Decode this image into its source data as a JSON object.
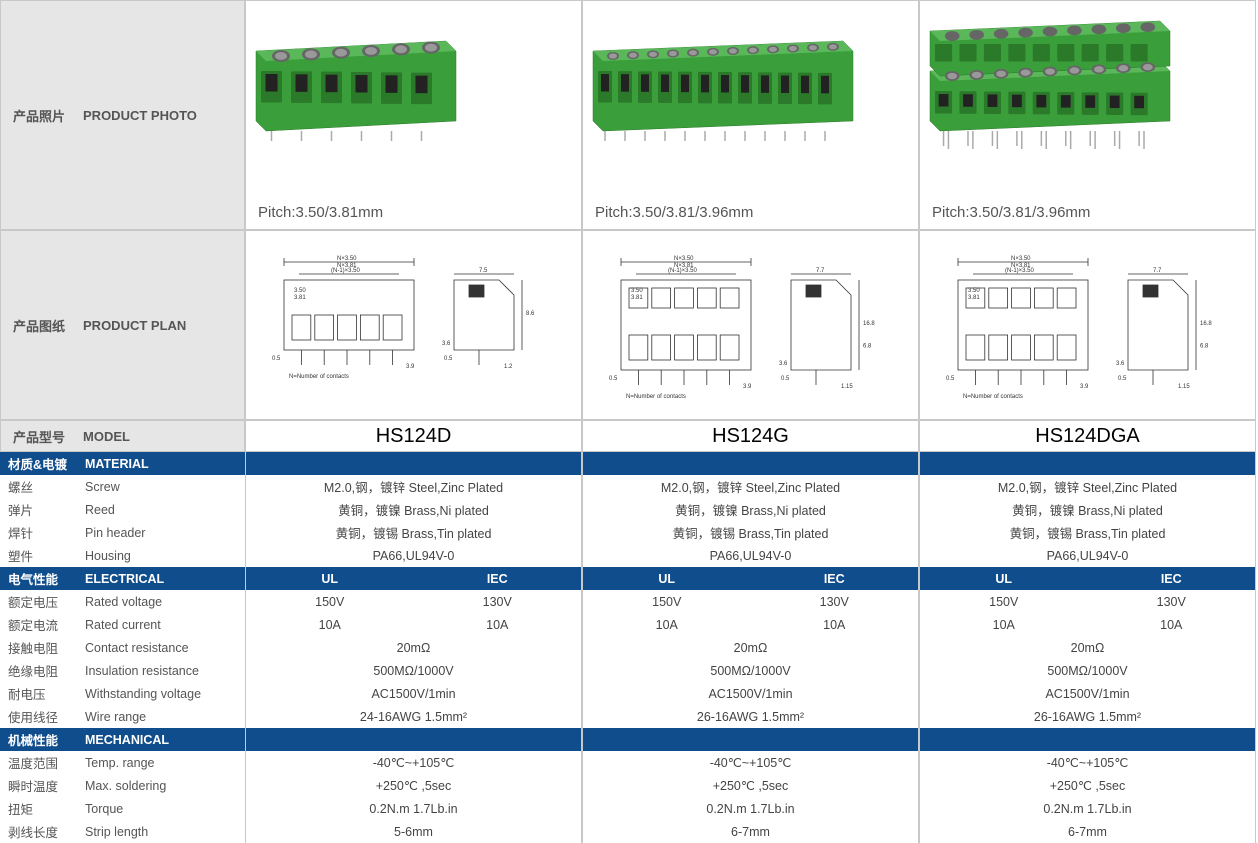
{
  "labels": {
    "photo_cn": "产品照片",
    "photo_en": "PRODUCT PHOTO",
    "plan_cn": "产品图纸",
    "plan_en": "PRODUCT PLAN",
    "model_cn": "产品型号",
    "model_en": "MODEL"
  },
  "products": [
    {
      "model": "HS124D",
      "pitch": "Pitch:3.50/3.81mm",
      "pins": 6,
      "rows": 1
    },
    {
      "model": "HS124G",
      "pitch": "Pitch:3.50/3.81/3.96mm",
      "pins": 12,
      "rows": 1
    },
    {
      "model": "HS124DGA",
      "pitch": "Pitch:3.50/3.81/3.96mm",
      "pins": 9,
      "rows": 2
    }
  ],
  "sections": [
    {
      "type": "header",
      "cn": "材质&电镀",
      "en": "MATERIAL",
      "data_header": ""
    },
    {
      "type": "row",
      "cn": "螺丝",
      "en": "Screw",
      "vals": [
        "M2.0,钢，镀锌 Steel,Zinc Plated",
        "M2.0,钢，镀锌 Steel,Zinc Plated",
        "M2.0,钢，镀锌 Steel,Zinc Plated"
      ]
    },
    {
      "type": "row",
      "cn": "弹片",
      "en": "Reed",
      "vals": [
        "黄铜，镀镍 Brass,Ni plated",
        "黄铜，镀镍 Brass,Ni plated",
        "黄铜，镀镍 Brass,Ni plated"
      ]
    },
    {
      "type": "row",
      "cn": "焊针",
      "en": "Pin header",
      "vals": [
        "黄铜，镀锡  Brass,Tin plated",
        "黄铜，镀锡 Brass,Tin plated",
        "黄铜，镀锡  Brass,Tin plated"
      ]
    },
    {
      "type": "row",
      "cn": "塑件",
      "en": "Housing",
      "vals": [
        "PA66,UL94V-0",
        "PA66,UL94V-0",
        "PA66,UL94V-0"
      ]
    },
    {
      "type": "header",
      "cn": "电气性能",
      "en": "ELECTRICAL",
      "data_header": "uliec"
    },
    {
      "type": "split",
      "cn": "额定电压",
      "en": "Rated voltage",
      "vals": [
        [
          "150V",
          "130V"
        ],
        [
          "150V",
          "130V"
        ],
        [
          "150V",
          "130V"
        ]
      ]
    },
    {
      "type": "split",
      "cn": "额定电流",
      "en": "Rated current",
      "vals": [
        [
          "10A",
          "10A"
        ],
        [
          "10A",
          "10A"
        ],
        [
          "10A",
          "10A"
        ]
      ]
    },
    {
      "type": "row",
      "cn": "接触电阻",
      "en": "Contact resistance",
      "vals": [
        "20mΩ",
        "20mΩ",
        "20mΩ"
      ]
    },
    {
      "type": "row",
      "cn": "绝缘电阻",
      "en": "Insulation resistance",
      "vals": [
        "500MΩ/1000V",
        "500MΩ/1000V",
        "500MΩ/1000V"
      ]
    },
    {
      "type": "row",
      "cn": "耐电压",
      "en": "Withstanding voltage",
      "vals": [
        "AC1500V/1min",
        "AC1500V/1min",
        "AC1500V/1min"
      ]
    },
    {
      "type": "row",
      "cn": "使用线径",
      "en": "Wire range",
      "vals": [
        "24-16AWG  1.5mm²",
        "26-16AWG  1.5mm²",
        "26-16AWG  1.5mm²"
      ]
    },
    {
      "type": "header",
      "cn": "机械性能",
      "en": "MECHANICAL",
      "data_header": ""
    },
    {
      "type": "row",
      "cn": "温度范围",
      "en": "Temp. range",
      "vals": [
        "-40℃~+105℃",
        "-40℃~+105℃",
        "-40℃~+105℃"
      ]
    },
    {
      "type": "row",
      "cn": "瞬时温度",
      "en": "Max. soldering",
      "vals": [
        "+250℃ ,5sec",
        "+250℃ ,5sec",
        "+250℃ ,5sec"
      ]
    },
    {
      "type": "row",
      "cn": "扭矩",
      "en": "Torque",
      "vals": [
        "0.2N.m  1.7Lb.in",
        "0.2N.m  1.7Lb.in",
        "0.2N.m  1.7Lb.in"
      ]
    },
    {
      "type": "row",
      "cn": "剥线长度",
      "en": "Strip length",
      "vals": [
        "5-6mm",
        "6-7mm",
        "6-7mm"
      ]
    }
  ],
  "uliec": {
    "ul": "UL",
    "iec": "IEC"
  },
  "diagram_note": "N=Number of contacts",
  "colors": {
    "header_bg": "#104d8c",
    "label_bg": "#e6e6e6",
    "border": "#c8c8c8",
    "connector_body": "#3a9e3a",
    "connector_body_dark": "#2a7a2a",
    "connector_body_light": "#5ab85a",
    "text": "#555"
  }
}
